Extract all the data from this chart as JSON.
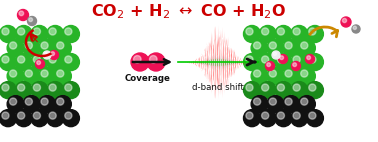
{
  "bg_color": "#ffffff",
  "title_color": "#cc0000",
  "title_fontsize": 11.5,
  "coverage_label": "Coverage",
  "dband_label": "d-band shift",
  "waveform_color_main": "#ff0000",
  "waveform_color_green": "#00cc00",
  "waveform_shadow_color": "#aaaaaa",
  "green_dark": "#1a8a1a",
  "green_mid": "#28b428",
  "green_light": "#66dd66",
  "black_sphere": "#111111",
  "pink_color": "#ee1155",
  "white_sphere": "#eeeeee",
  "gray_sphere": "#888888",
  "arrow_color": "#111111",
  "gold_arrow": "#cc8800",
  "red_arrow": "#cc0000",
  "figsize": [
    3.78,
    1.42
  ],
  "dpi": 100
}
